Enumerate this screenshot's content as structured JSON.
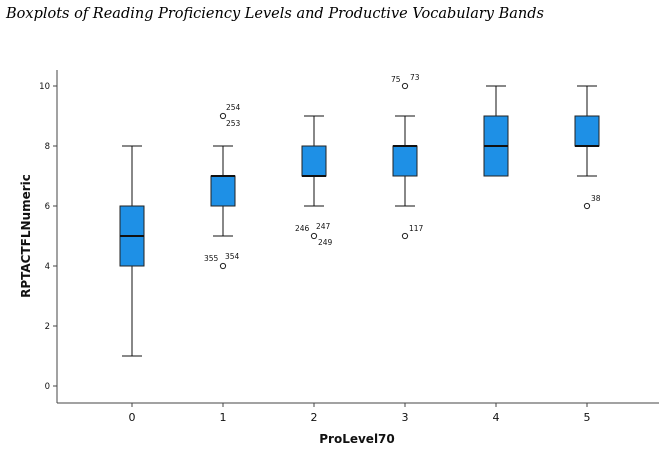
{
  "chart_data": {
    "type": "boxplot",
    "title": "Boxplots of Reading Proficiency Levels and Productive Vocabulary Bands",
    "xlabel": "ProLevel70",
    "ylabel": "RPTACTFLNumeric",
    "categories": [
      "0",
      "1",
      "2",
      "3",
      "4",
      "5"
    ],
    "ylim": [
      -0.5,
      10.5
    ],
    "yticks": [
      "0",
      "2",
      "4",
      "6",
      "8",
      "10"
    ],
    "box_color": "#1e90e6",
    "boxes": [
      {
        "category": "0",
        "whisker_low": 1,
        "q1": 4,
        "median": 5,
        "q3": 6,
        "whisker_high": 8,
        "outliers": []
      },
      {
        "category": "1",
        "whisker_low": 5,
        "q1": 6,
        "median": 7,
        "q3": 7,
        "whisker_high": 8,
        "outliers": [
          {
            "y": 9,
            "labels": [
              "254",
              "253"
            ]
          },
          {
            "y": 4,
            "labels": [
              "355",
              "354"
            ]
          }
        ]
      },
      {
        "category": "2",
        "whisker_low": 6,
        "q1": 7,
        "median": 7,
        "q3": 8,
        "whisker_high": 9,
        "outliers": [
          {
            "y": 5,
            "labels": [
              "246",
              "247",
              "249"
            ]
          }
        ]
      },
      {
        "category": "3",
        "whisker_low": 6,
        "q1": 7,
        "median": 8,
        "q3": 8,
        "whisker_high": 9,
        "outliers": [
          {
            "y": 10,
            "labels": [
              "75",
              "73"
            ]
          },
          {
            "y": 5,
            "labels": [
              "117"
            ]
          }
        ]
      },
      {
        "category": "4",
        "whisker_low": 7,
        "q1": 7,
        "median": 8,
        "q3": 9,
        "whisker_high": 10,
        "outliers": []
      },
      {
        "category": "5",
        "whisker_low": 7,
        "q1": 8,
        "median": 8,
        "q3": 9,
        "whisker_high": 10,
        "outliers": [
          {
            "y": 6,
            "labels": [
              "38"
            ]
          }
        ]
      }
    ]
  }
}
